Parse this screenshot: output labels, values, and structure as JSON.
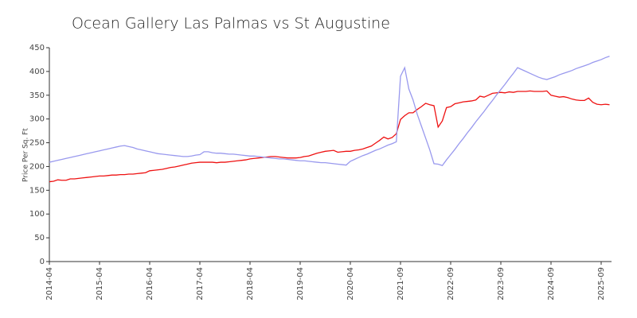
{
  "chart_data": {
    "type": "line",
    "title": "Ocean Gallery Las Palmas vs St Augustine",
    "y_label": "Price Per Sq. Ft",
    "categories": [
      "2014-04",
      null,
      null,
      null,
      null,
      null,
      null,
      null,
      null,
      null,
      null,
      null,
      "2015-04",
      null,
      null,
      null,
      null,
      null,
      null,
      null,
      null,
      null,
      null,
      null,
      "2016-04",
      null,
      null,
      null,
      null,
      null,
      null,
      null,
      null,
      null,
      null,
      null,
      "2017-04",
      null,
      null,
      null,
      null,
      null,
      null,
      null,
      null,
      null,
      null,
      null,
      "2018-04",
      null,
      null,
      null,
      null,
      null,
      null,
      null,
      null,
      null,
      null,
      null,
      "2019-04",
      null,
      null,
      null,
      null,
      null,
      null,
      null,
      null,
      null,
      null,
      null,
      "2020-04",
      null,
      null,
      null,
      null,
      null,
      null,
      null,
      null,
      null,
      null,
      null,
      "2021-09",
      null,
      null,
      null,
      null,
      null,
      null,
      null,
      null,
      null,
      null,
      null,
      "2022-09",
      null,
      null,
      null,
      null,
      null,
      null,
      null,
      null,
      null,
      null,
      null,
      "2023-09",
      null,
      null,
      null,
      null,
      null,
      null,
      null,
      null,
      null,
      null,
      null,
      "2024-09",
      null,
      null,
      null,
      null,
      null,
      null,
      null,
      null,
      null,
      null,
      null,
      "2025-09",
      null,
      null
    ],
    "series": [
      {
        "color": "#ee1111",
        "values": [
          168,
          169,
          172,
          171,
          171,
          174,
          174,
          175,
          176,
          177,
          178,
          179,
          180,
          180,
          181,
          182,
          182,
          183,
          183,
          184,
          184,
          185,
          186,
          187,
          191,
          192,
          193,
          194,
          196,
          198,
          199,
          201,
          203,
          205,
          207,
          208,
          209,
          209,
          209,
          209,
          208,
          209,
          209,
          210,
          211,
          212,
          213,
          214,
          216,
          217,
          218,
          219,
          220,
          221,
          221,
          220,
          219,
          218,
          218,
          218,
          219,
          221,
          222,
          225,
          228,
          230,
          232,
          233,
          234,
          230,
          231,
          232,
          232,
          234,
          235,
          237,
          240,
          243,
          249,
          255,
          262,
          258,
          261,
          269,
          299,
          307,
          313,
          313,
          320,
          326,
          333,
          330,
          328,
          283,
          296,
          324,
          326,
          332,
          334,
          336,
          337,
          338,
          340,
          348,
          346,
          350,
          354,
          355,
          356,
          355,
          357,
          356,
          358,
          358,
          358,
          359,
          358,
          358,
          358,
          359,
          350,
          348,
          346,
          347,
          345,
          342,
          340,
          339,
          339,
          344,
          335,
          331,
          330,
          331,
          330
        ]
      },
      {
        "color": "#9999ee",
        "values": [
          209,
          211,
          213,
          215,
          217,
          219,
          221,
          223,
          225,
          227,
          229,
          231,
          233,
          235,
          237,
          239,
          241,
          243,
          244,
          242,
          240,
          237,
          235,
          233,
          231,
          229,
          227,
          226,
          225,
          224,
          223,
          222,
          221,
          221,
          222,
          224,
          225,
          231,
          231,
          229,
          228,
          228,
          227,
          226,
          226,
          225,
          224,
          223,
          222,
          222,
          221,
          220,
          219,
          218,
          217,
          216,
          216,
          215,
          214,
          213,
          212,
          212,
          211,
          210,
          209,
          208,
          208,
          207,
          206,
          205,
          204,
          203,
          211,
          215,
          219,
          223,
          226,
          230,
          234,
          237,
          241,
          245,
          248,
          252,
          390,
          408,
          363,
          340,
          310,
          285,
          260,
          235,
          206,
          205,
          202,
          214,
          225,
          236,
          248,
          259,
          271,
          282,
          294,
          305,
          316,
          328,
          339,
          351,
          362,
          373,
          385,
          396,
          408,
          404,
          400,
          396,
          392,
          388,
          385,
          383,
          386,
          389,
          393,
          396,
          399,
          402,
          406,
          409,
          412,
          415,
          419,
          422,
          425,
          429,
          432
        ]
      }
    ],
    "ylim": [
      0,
      450
    ],
    "yticks": [
      0,
      50,
      100,
      150,
      200,
      250,
      300,
      350,
      400,
      450
    ]
  }
}
